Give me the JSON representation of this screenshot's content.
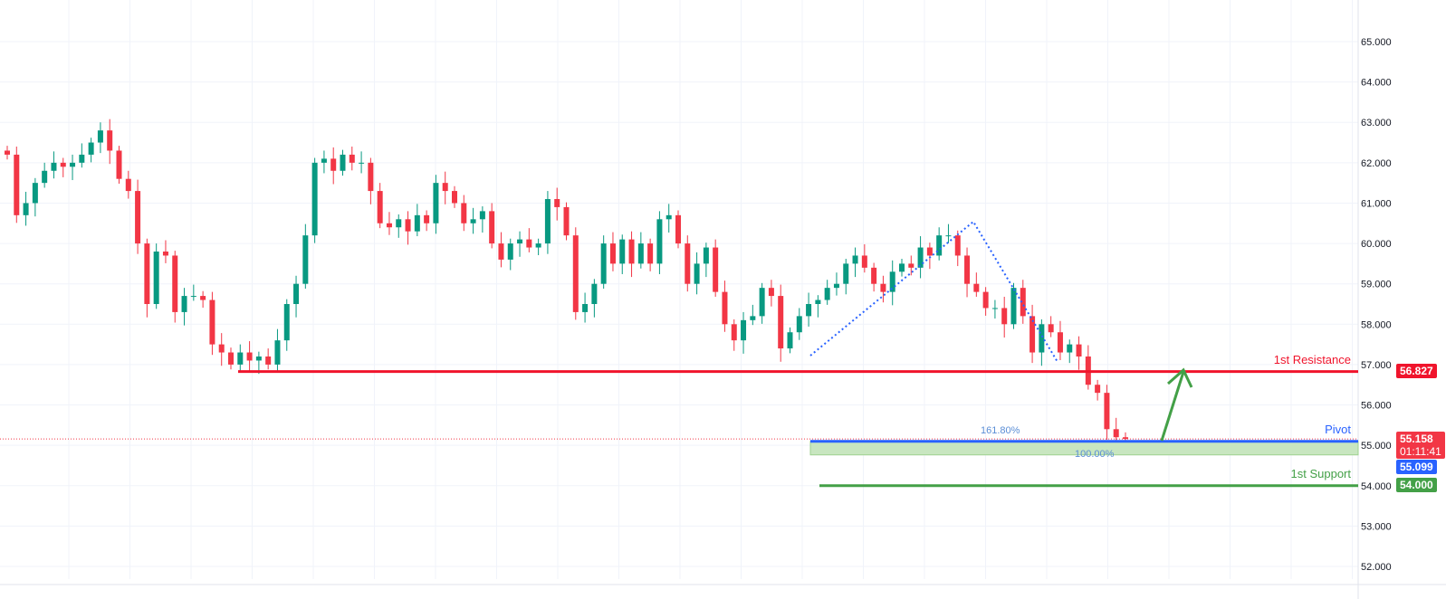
{
  "chart_data": {
    "type": "candlestick",
    "ylim": [
      51.8,
      65.9
    ],
    "y_ticks": [
      "52.000",
      "53.000",
      "54.000",
      "55.000",
      "56.000",
      "57.000",
      "58.000",
      "59.000",
      "60.000",
      "61.000",
      "62.000",
      "63.000",
      "64.000",
      "65.000"
    ],
    "grid": true,
    "closes": [
      62.2,
      60.7,
      61.0,
      61.5,
      61.8,
      62.0,
      61.9,
      62.0,
      62.2,
      62.5,
      62.8,
      62.3,
      61.6,
      61.3,
      60.0,
      58.5,
      59.8,
      59.7,
      58.3,
      58.7,
      58.7,
      58.6,
      57.5,
      57.3,
      57.0,
      57.3,
      57.1,
      57.2,
      57.0,
      57.6,
      58.5,
      59.0,
      60.2,
      62.0,
      62.1,
      61.8,
      62.2,
      62.0,
      62.0,
      61.3,
      60.5,
      60.4,
      60.6,
      60.3,
      60.7,
      60.5,
      61.5,
      61.3,
      61.0,
      60.5,
      60.6,
      60.8,
      60.0,
      59.6,
      60.0,
      60.1,
      59.9,
      60.0,
      61.1,
      60.9,
      60.2,
      58.3,
      58.5,
      59.0,
      60.0,
      59.5,
      60.1,
      59.5,
      60.0,
      59.5,
      60.6,
      60.7,
      60.0,
      59.0,
      59.5,
      59.9,
      58.8,
      58.0,
      57.6,
      58.1,
      58.2,
      58.9,
      58.7,
      57.4,
      57.8,
      58.2,
      58.5,
      58.6,
      58.9,
      59.0,
      59.5,
      59.7,
      59.4,
      59.0,
      58.8,
      59.3,
      59.5,
      59.4,
      59.9,
      59.7,
      60.2,
      60.2,
      59.7,
      59.0,
      58.8,
      58.4,
      58.4,
      58.0,
      58.9,
      58.2,
      57.3,
      58.0,
      57.8,
      57.3,
      57.5,
      57.2,
      56.5,
      56.3,
      55.4,
      55.2,
      55.158
    ],
    "colors": {
      "up": "#089981",
      "down": "#f23645",
      "resistance": "#f0142c",
      "pivot": "#2962ff",
      "support": "#43a047",
      "zone": "#c8e6c0"
    },
    "levels": {
      "resistance": {
        "label": "1st Resistance",
        "value": 56.827,
        "tag": "56.827"
      },
      "pivot": {
        "label": "Pivot",
        "value": 55.099,
        "tag": "55.099"
      },
      "support": {
        "label": "1st Support",
        "value": 54.0,
        "tag": "54.000"
      }
    },
    "last_price": {
      "value": 55.158,
      "tag": "55.158",
      "countdown": "01:11:41"
    },
    "fib_labels": [
      "161.80%",
      "100.00%"
    ]
  }
}
